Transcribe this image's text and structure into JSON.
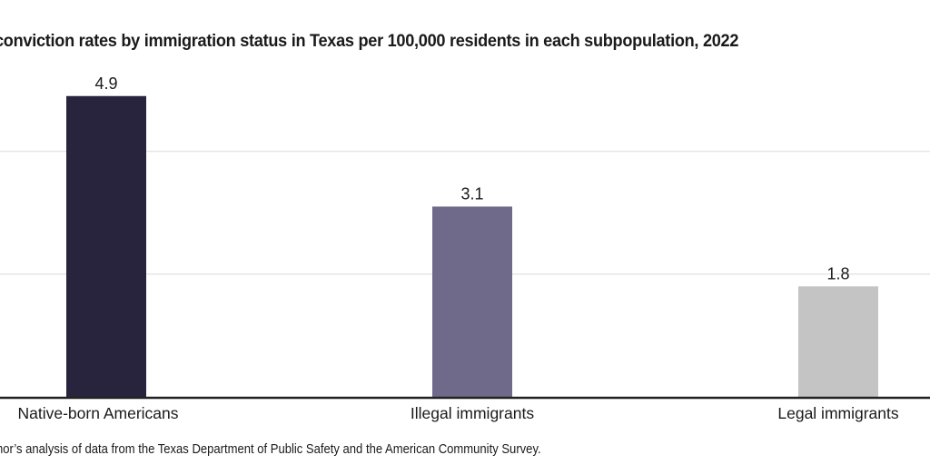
{
  "chart_data": {
    "type": "bar",
    "title": "conviction rates by immigration status in Texas per 100,000 residents in each subpopulation, 2022",
    "categories": [
      "Native-born Americans",
      "Illegal immigrants",
      "Legal immigrants"
    ],
    "values": [
      4.9,
      3.1,
      1.8
    ],
    "data_labels": [
      "4.9",
      "3.1",
      "1.8"
    ],
    "colors": [
      "#29243d",
      "#6f6a8a",
      "#c4c4c4"
    ],
    "ylim": [
      0,
      5
    ],
    "gridlines": [
      2,
      4
    ],
    "grid": true,
    "source": "hor’s analysis of data from the Texas Department of Public Safety and the American Community Survey."
  }
}
